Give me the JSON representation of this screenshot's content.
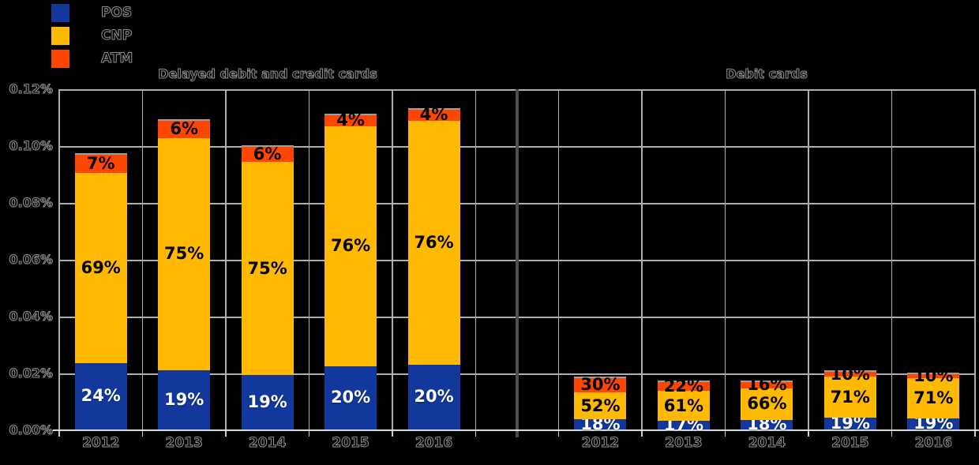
{
  "chart_data": {
    "type": "bar",
    "stacked": true,
    "grid": true,
    "legend_position": "top-left",
    "y_axis": {
      "min": 0,
      "max": 0.12,
      "step": 0.02,
      "tick_labels_top_to_bottom": [
        "0.12%",
        "0.10%",
        "0.08%",
        "0.06%",
        "0.04%",
        "0.02%",
        "0.00%"
      ]
    },
    "legend": [
      {
        "label": "POS",
        "color": "#12389E"
      },
      {
        "label": "CNP",
        "color": "#FFB900"
      },
      {
        "label": "ATM",
        "color": "#FF4600"
      }
    ],
    "groups": [
      {
        "title": "Delayed debit and credit cards",
        "categories": [
          "2012",
          "2013",
          "2014",
          "2015",
          "2016"
        ],
        "bar_totals_pct_estimated": [
          0.097,
          0.109,
          0.1,
          0.111,
          0.113
        ],
        "shares_pct_pos_cnp_atm": [
          [
            24,
            69,
            7
          ],
          [
            19,
            75,
            6
          ],
          [
            19,
            75,
            6
          ],
          [
            20,
            76,
            4
          ],
          [
            20,
            76,
            4
          ]
        ]
      },
      {
        "title": "Debit cards",
        "categories": [
          "2012",
          "2013",
          "2014",
          "2015",
          "2016"
        ],
        "bar_totals_pct_estimated": [
          0.0186,
          0.0172,
          0.0172,
          0.0206,
          0.02
        ],
        "shares_pct_pos_cnp_atm": [
          [
            18,
            52,
            30
          ],
          [
            17,
            61,
            22
          ],
          [
            18,
            66,
            16
          ],
          [
            19,
            71,
            10
          ],
          [
            19,
            71,
            10
          ]
        ]
      }
    ]
  }
}
